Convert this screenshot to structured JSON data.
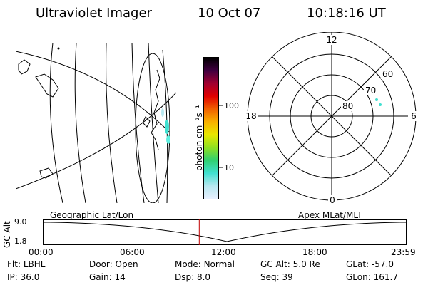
{
  "header": {
    "title": "Ultraviolet Imager",
    "date": "10 Oct 07",
    "time": "10:18:16 UT"
  },
  "colorbar": {
    "label": "photon cm⁻²s⁻¹",
    "ticks": [
      "100",
      "10"
    ],
    "colors": [
      "#e8f0ff",
      "#b8e8f0",
      "#40e0d0",
      "#30d070",
      "#90e020",
      "#e8e800",
      "#f8b000",
      "#f06000",
      "#e00000",
      "#a00030",
      "#400040",
      "#000000"
    ]
  },
  "polar": {
    "mlt_labels": [
      "12",
      "18",
      "6",
      "0"
    ],
    "lat_labels": [
      "60",
      "70",
      "80"
    ]
  },
  "timeline": {
    "left_label": "Geographic Lat/Lon",
    "right_label": "Apex MLat/MLT",
    "axis_label": "GC Alt",
    "y_ticks": [
      "9.0",
      "1.8"
    ],
    "x_ticks": [
      "00:00",
      "06:00",
      "12:00",
      "18:00",
      "23:59"
    ],
    "current_time_fraction": 0.43
  },
  "info": {
    "row1": [
      {
        "label": "Flt:",
        "value": "LBHL"
      },
      {
        "label": "Door:",
        "value": "Open"
      },
      {
        "label": "Mode:",
        "value": "Normal"
      },
      {
        "label": "GC Alt:",
        "value": "5.0 Re"
      },
      {
        "label": "GLat:",
        "value": "-57.0"
      }
    ],
    "row2": [
      {
        "label": "IP:",
        "value": "36.0"
      },
      {
        "label": "Gain:",
        "value": "14"
      },
      {
        "label": "Dsp:",
        "value": "8.0"
      },
      {
        "label": "Seq:",
        "value": "39"
      },
      {
        "label": "GLon:",
        "value": "161.7"
      }
    ]
  }
}
